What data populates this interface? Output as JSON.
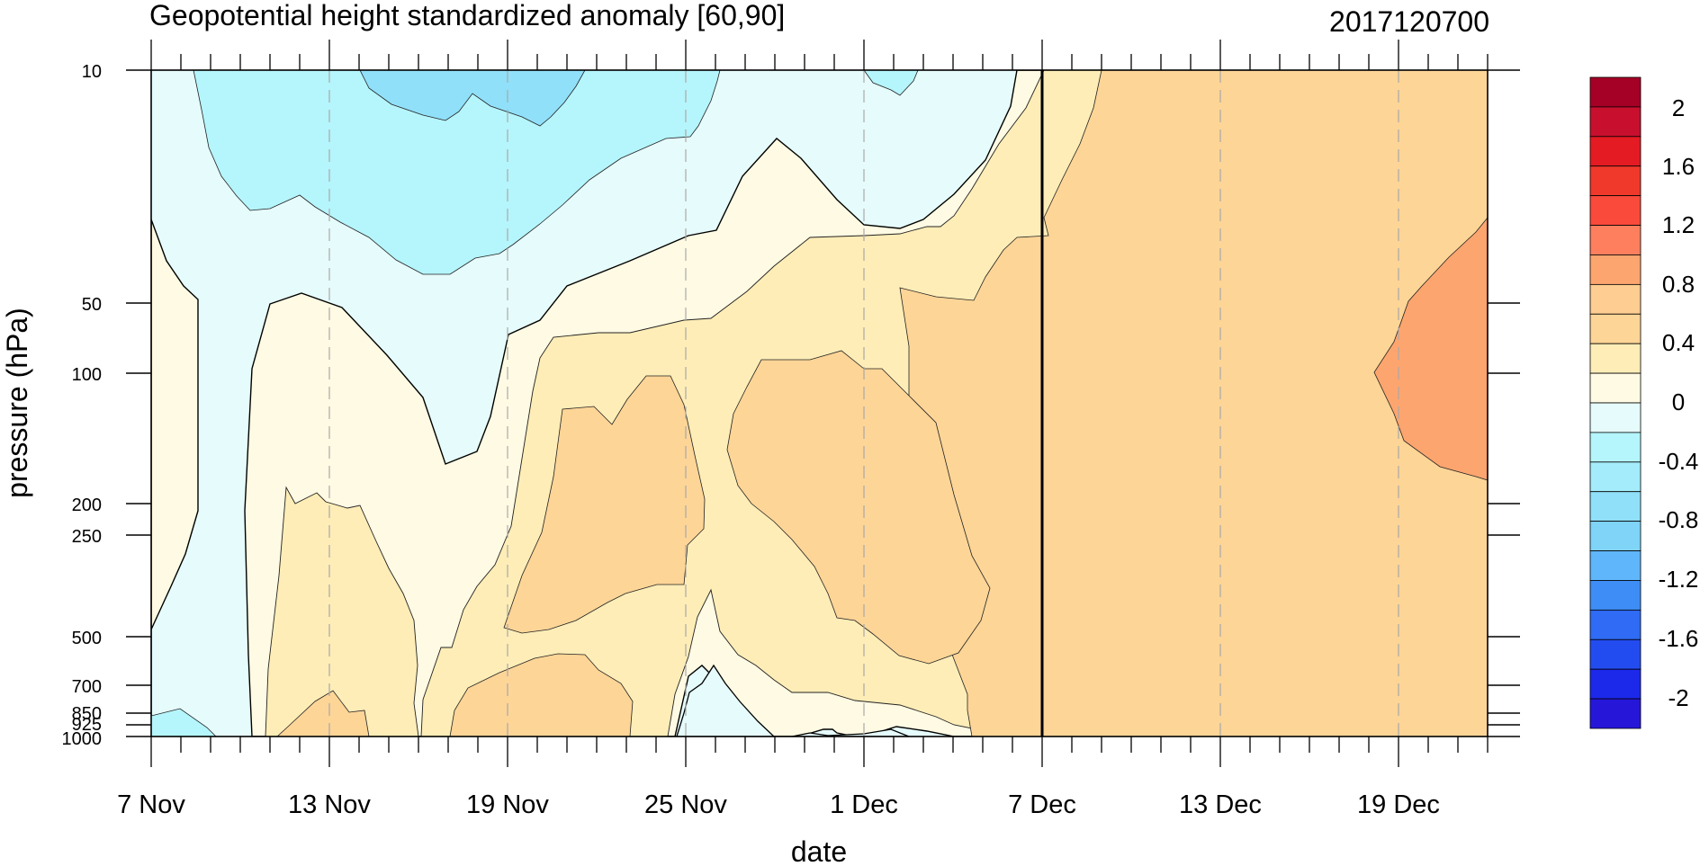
{
  "chart_data": {
    "type": "heatmap",
    "title": "Geopotential height standardized anomaly [60,90]",
    "right_title": "2017120700",
    "xlabel": "date",
    "ylabel": "pressure (hPa)",
    "x_tick_labels": [
      "7 Nov",
      "13 Nov",
      "19 Nov",
      "25 Nov",
      "1 Dec",
      "7 Dec",
      "13 Dec",
      "19 Dec"
    ],
    "x_tick_days": [
      0,
      6,
      12,
      18,
      24,
      30,
      36,
      42
    ],
    "x_range_days": [
      0,
      45
    ],
    "y_levels": [
      10,
      50,
      100,
      200,
      250,
      500,
      700,
      850,
      925,
      1000
    ],
    "y_tick_labels": [
      "10",
      "50",
      "100",
      "200",
      "250",
      "500",
      "700",
      "850",
      "925",
      "1000"
    ],
    "y_scale": "log",
    "y_reversed": true,
    "current_date_marker_day": 30,
    "grid_dashed_at_days": [
      6,
      12,
      18,
      24,
      36,
      42
    ],
    "colorbar": {
      "labels": [
        "2",
        "1.6",
        "1.2",
        "0.8",
        "0.4",
        "0",
        "-0.4",
        "-0.8",
        "-1.2",
        "-1.6",
        "-2"
      ],
      "colors": [
        "#A50026",
        "#C8102E",
        "#E41B23",
        "#F0392B",
        "#FA4A3B",
        "#FE7F5E",
        "#FDA56F",
        "#FDCD91",
        "#FDD597",
        "#FEEDB7",
        "#FFFAE3",
        "#E6FBFB",
        "#B5F5FC",
        "#A4ECFB",
        "#90E0F9",
        "#7FD4F8",
        "#5FB6FA",
        "#3E8DF6",
        "#2F6BF4",
        "#234CF0",
        "#1C29EA",
        "#2617D8"
      ]
    },
    "field_colors": {
      "neg_04": "#B5F5FC",
      "neg_00": "#E6FBFB",
      "pos_00": "#FFFAE3",
      "pos_02": "#FEEDB7",
      "pos_04": "#FDD597",
      "pos_06": "#FDA56F",
      "neg_08": "#90E0F9"
    }
  }
}
